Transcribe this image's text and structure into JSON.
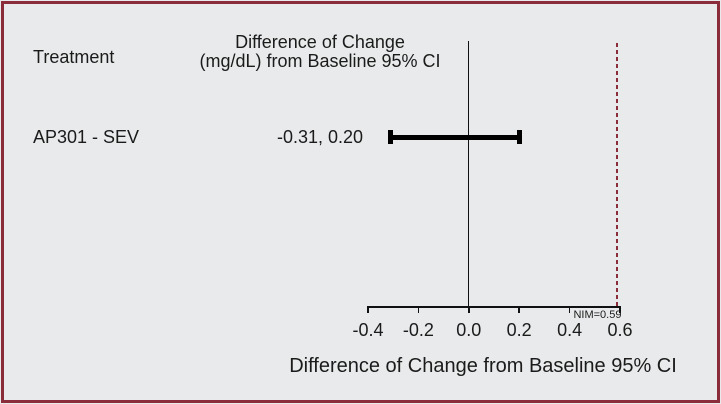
{
  "frame": {
    "background": "#e9eaeb",
    "border_color": "#8b2c3a"
  },
  "header": {
    "treatment_label": "Treatment",
    "ci_header_line1": "Difference of Change",
    "ci_header_line2": "(mg/dL) from Baseline 95% CI"
  },
  "rows": [
    {
      "treatment": "AP301 - SEV",
      "ci_text": "-0.31, 0.20"
    }
  ],
  "chart_data": {
    "type": "scatter",
    "subtype": "forest-plot-horizontal-ci",
    "title": "",
    "xlabel": "Difference of Change from Baseline 95% CI",
    "ylabel": "",
    "xlim": [
      -0.4,
      0.6
    ],
    "x_ticks": [
      -0.4,
      -0.2,
      0.0,
      0.2,
      0.4,
      0.6
    ],
    "grid": false,
    "legend": "none",
    "reference_line": {
      "x": 0.0,
      "style": "solid",
      "color": "#111111"
    },
    "nim_line": {
      "x": 0.59,
      "label": "NIM=0.59",
      "style": "dashed",
      "color": "#8b2c3a"
    },
    "series": [
      {
        "name": "AP301 - SEV",
        "ci_lower": -0.31,
        "ci_upper": 0.2,
        "ci_label": "-0.31, 0.20",
        "color": "#000000"
      }
    ]
  }
}
